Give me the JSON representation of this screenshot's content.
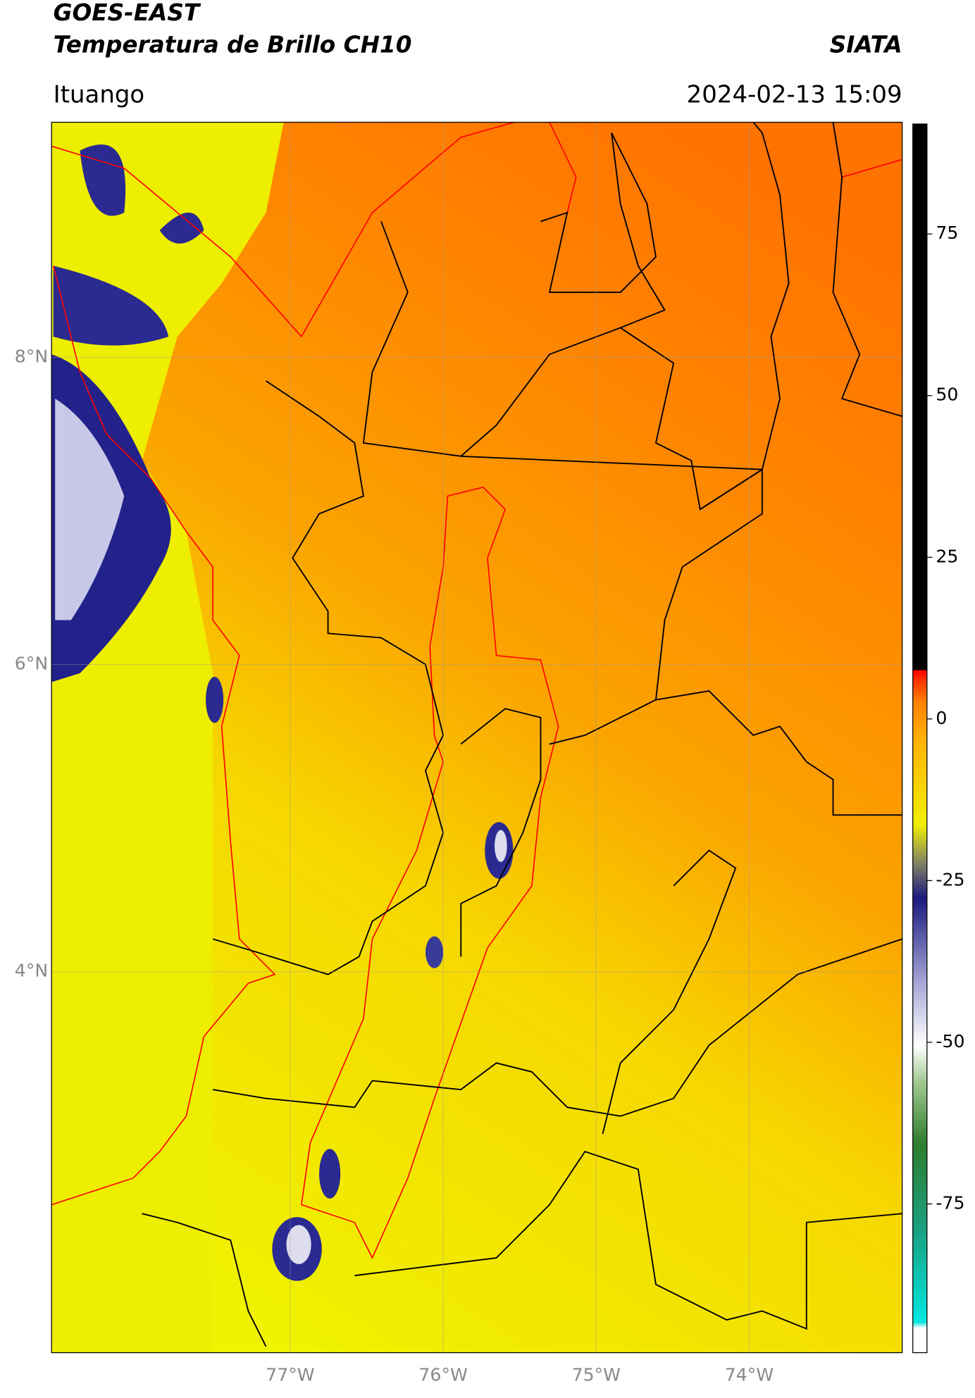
{
  "header": {
    "title": "GOES-EAST",
    "subtitle": "Temperatura de Brillo CH10",
    "source": "SIATA",
    "location": "Ituango",
    "timestamp": "2024-02-13 15:09"
  },
  "map": {
    "lon_lim": [
      -78.56,
      -73.0
    ],
    "lat_lim": [
      1.52,
      9.53
    ],
    "lon_ticks": [
      {
        "value": -77,
        "label": "77°W"
      },
      {
        "value": -76,
        "label": "76°W"
      },
      {
        "value": -75,
        "label": "75°W"
      },
      {
        "value": -74,
        "label": "74°W"
      }
    ],
    "lat_ticks": [
      {
        "value": 8,
        "label": "8°N"
      },
      {
        "value": 6,
        "label": "6°N"
      },
      {
        "value": 4,
        "label": "4°N"
      }
    ]
  },
  "colorbar": {
    "lim": [
      -98,
      92
    ],
    "ticks": [
      -75,
      -50,
      -25,
      0,
      25,
      50,
      75
    ]
  }
}
